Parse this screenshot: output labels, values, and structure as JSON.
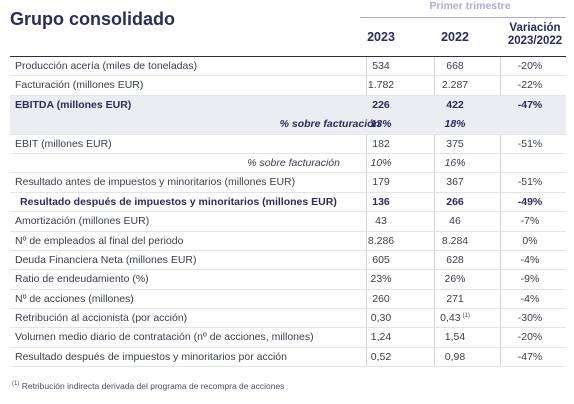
{
  "title": "Grupo consolidado",
  "period": "Primer trimestre",
  "headers": {
    "y2023": "2023",
    "y2022": "2022",
    "var_line1": "Variación",
    "var_line2": "2023/2022"
  },
  "rows": [
    {
      "label": "Producción acería (miles de toneladas)",
      "v2023": "534",
      "v2022": "668",
      "var": "-20%",
      "style": "normal"
    },
    {
      "label": "Facturación (millones EUR)",
      "v2023": "1.782",
      "v2022": "2.287",
      "var": "-22%",
      "style": "normal"
    },
    {
      "label": "EBITDA (millones EUR)",
      "v2023": "226",
      "v2022": "422",
      "var": "-47%",
      "style": "hl-bold"
    },
    {
      "label": "% sobre facturación",
      "v2023": "13%",
      "v2022": "18%",
      "var": "",
      "style": "hl-bold-pct"
    },
    {
      "label": "EBIT (millones EUR)",
      "v2023": "182",
      "v2022": "375",
      "var": "-51%",
      "style": "normal"
    },
    {
      "label": "% sobre facturación",
      "v2023": "10%",
      "v2022": "16%",
      "var": "",
      "style": "pct"
    },
    {
      "label": "Resultado antes de impuestos y minoritarios (millones EUR)",
      "v2023": "179",
      "v2022": "367",
      "var": "-51%",
      "style": "normal"
    },
    {
      "label": "Resultado después de impuestos y minoritarios (millones EUR)",
      "v2023": "136",
      "v2022": "266",
      "var": "-49%",
      "style": "bold"
    },
    {
      "label": "Amortización (millones EUR)",
      "v2023": "43",
      "v2022": "46",
      "var": "-7%",
      "style": "normal"
    },
    {
      "label": "Nº de empleados al final del periodo",
      "v2023": "8.286",
      "v2022": "8.284",
      "var": "0%",
      "style": "normal"
    },
    {
      "label": "Deuda Financiera Neta (millones EUR)",
      "v2023": "605",
      "v2022": "628",
      "var": "-4%",
      "style": "normal"
    },
    {
      "label": "Ratio de endeudamiento (%)",
      "v2023": "23%",
      "v2022": "26%",
      "var": "-9%",
      "style": "normal"
    },
    {
      "label": "Nº de acciones (millones)",
      "v2023": "260",
      "v2022": "271",
      "var": "-4%",
      "style": "normal"
    },
    {
      "label": "Retribución al accionista (por acción)",
      "v2023": "0,30",
      "v2022": "0,43",
      "v2022_note": "(1)",
      "var": "-30%",
      "style": "normal"
    },
    {
      "label": "Volumen medio diario de contratación (nº de acciones, millones)",
      "v2023": "1,24",
      "v2022": "1,54",
      "var": "-20%",
      "style": "normal"
    },
    {
      "label": "Resultado después de impuestos y minoritarios por acción",
      "v2023": "0,52",
      "v2022": "0,98",
      "var": "-47%",
      "style": "normal"
    }
  ],
  "footnote": {
    "marker": "(1)",
    "text": "Retribución indirecta derivada del programa de recompra de acciones"
  }
}
